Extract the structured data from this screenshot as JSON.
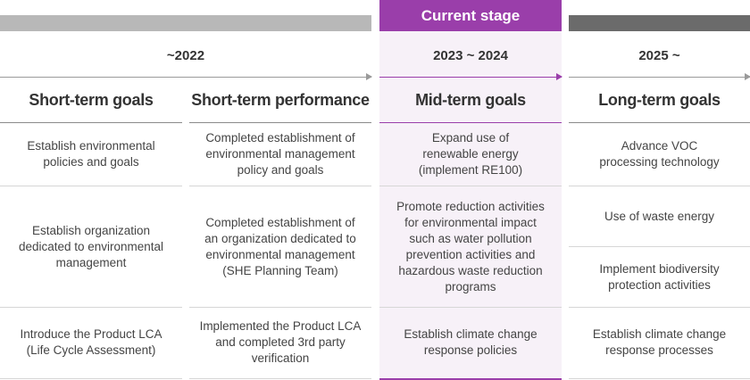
{
  "stage_tab": "Current stage",
  "periods": [
    "~2022",
    "2023 ~ 2024",
    "2025 ~"
  ],
  "headers": [
    "Short-term goals",
    "Short-term performance",
    "Mid-term goals",
    "Long-term goals"
  ],
  "short_term_goals": [
    "Establish environmental\npolicies and goals",
    "Establish organization\ndedicated to environmental\nmanagement",
    "Introduce the Product LCA\n(Life Cycle Assessment)"
  ],
  "short_term_performance": [
    "Completed establishment of\nenvironmental management\npolicy and goals",
    "Completed establishment of\nan organization dedicated to\nenvironmental management\n(SHE Planning Team)",
    "Implemented the Product LCA\nand completed 3rd party\nverification"
  ],
  "mid_term_goals": [
    "Expand use of\nrenewable energy\n(implement RE100)",
    "Promote reduction activities\nfor environmental impact\nsuch as water pollution\nprevention activities and\nhazardous waste reduction\nprograms",
    "Establish climate change\nresponse policies"
  ],
  "long_term_goals": [
    "Advance VOC\nprocessing technology",
    "Use of waste energy",
    "Implement biodiversity\nprotection activities",
    "Establish climate change\nresponse processes"
  ],
  "colors": {
    "accent": "#9a3eaa",
    "light_gray": "#b8b8b8",
    "dark_gray": "#6b6b6b",
    "mid_bg": "#f7f1f8"
  }
}
